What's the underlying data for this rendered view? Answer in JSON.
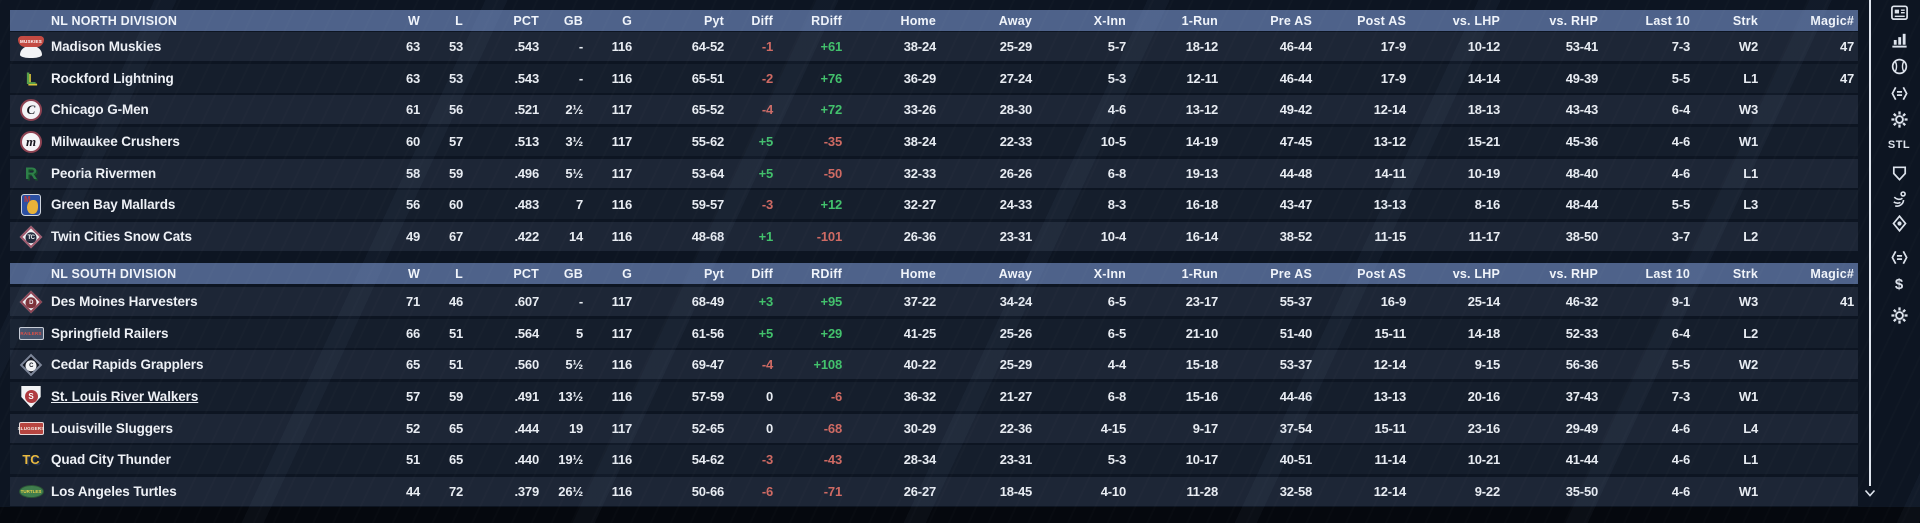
{
  "palette": {
    "background": "#0d1522",
    "header_bar": "#4e628a",
    "row_light": "#1d2636",
    "row_dark": "#151e2c",
    "text": "#e8ecf2",
    "positive": "#42c16c",
    "negative": "#cf6a63",
    "bottom_strip": "#05080e",
    "icon": "#dde3ec"
  },
  "columns": [
    "W",
    "L",
    "PCT",
    "GB",
    "G",
    "Pyt",
    "Diff",
    "RDiff",
    "Home",
    "Away",
    "X-Inn",
    "1-Run",
    "Pre AS",
    "Post AS",
    "vs. LHP",
    "vs. RHP",
    "Last 10",
    "Strk",
    "Magic#"
  ],
  "divisions": [
    {
      "label": "NL NORTH DIVISION",
      "teams": [
        {
          "name": "Madison Muskies",
          "underline": false,
          "logo": {
            "type": "banner",
            "c1": "#c34a42",
            "c2": "#f2f3f5",
            "label": "MUSKIES"
          },
          "stats": [
            "63",
            "53",
            ".543",
            "-",
            "116",
            "64-52",
            "-1",
            "+61",
            "38-24",
            "25-29",
            "5-7",
            "18-12",
            "46-44",
            "17-9",
            "10-12",
            "53-41",
            "7-3",
            "W2",
            "47"
          ]
        },
        {
          "name": "Rockford Lightning",
          "underline": false,
          "logo": {
            "type": "letter",
            "text": "L",
            "c1": "#58a04b",
            "c2": "#d9c43a"
          },
          "stats": [
            "63",
            "53",
            ".543",
            "-",
            "116",
            "65-51",
            "-2",
            "+76",
            "36-29",
            "27-24",
            "5-3",
            "12-11",
            "46-44",
            "17-9",
            "14-14",
            "49-39",
            "5-5",
            "L1",
            "47"
          ]
        },
        {
          "name": "Chicago G-Men",
          "underline": false,
          "logo": {
            "type": "circle",
            "text": "C",
            "ring": "#8e4352",
            "bg": "#f4f4f6",
            "fg": "#16161e"
          },
          "stats": [
            "61",
            "56",
            ".521",
            "2½",
            "117",
            "65-52",
            "-4",
            "+72",
            "33-26",
            "28-30",
            "4-6",
            "13-12",
            "49-42",
            "12-14",
            "18-13",
            "43-43",
            "6-4",
            "W3",
            ""
          ]
        },
        {
          "name": "Milwaukee Crushers",
          "underline": false,
          "logo": {
            "type": "circle",
            "text": "m",
            "ring": "#8e4352",
            "bg": "#f4f4f6",
            "fg": "#16161e"
          },
          "stats": [
            "60",
            "57",
            ".513",
            "3½",
            "117",
            "55-62",
            "+5",
            "-35",
            "38-24",
            "22-33",
            "10-5",
            "14-19",
            "47-45",
            "13-12",
            "15-21",
            "45-36",
            "4-6",
            "W1",
            ""
          ]
        },
        {
          "name": "Peoria Rivermen",
          "underline": false,
          "logo": {
            "type": "letter",
            "text": "R",
            "c1": "#2e8049",
            "c2": "#174a2a"
          },
          "stats": [
            "58",
            "59",
            ".496",
            "5½",
            "117",
            "53-64",
            "+5",
            "-50",
            "32-33",
            "26-26",
            "6-8",
            "19-13",
            "44-48",
            "14-11",
            "10-19",
            "48-40",
            "4-6",
            "L1",
            ""
          ]
        },
        {
          "name": "Green Bay Mallards",
          "underline": false,
          "logo": {
            "type": "shield",
            "bg": "#2b4fa2",
            "accent": "#e8b33a",
            "mark": "M",
            "markColor": "#c03a38"
          },
          "stats": [
            "56",
            "60",
            ".483",
            "7",
            "116",
            "59-57",
            "-3",
            "+12",
            "32-27",
            "24-33",
            "8-3",
            "16-18",
            "43-47",
            "13-13",
            "8-16",
            "48-44",
            "5-5",
            "L3",
            ""
          ]
        },
        {
          "name": "Twin Cities Snow Cats",
          "underline": false,
          "logo": {
            "type": "diamond",
            "bg": "#f2f3f5",
            "ring": "#a05a6e",
            "center": "#232c3e",
            "text": "TC",
            "fg": "#f2f3f5"
          },
          "stats": [
            "49",
            "67",
            ".422",
            "14",
            "116",
            "48-68",
            "+1",
            "-101",
            "26-36",
            "23-31",
            "10-4",
            "16-14",
            "38-52",
            "11-15",
            "11-17",
            "38-50",
            "3-7",
            "L2",
            ""
          ]
        }
      ]
    },
    {
      "label": "NL SOUTH DIVISION",
      "teams": [
        {
          "name": "Des Moines Harvesters",
          "underline": false,
          "logo": {
            "type": "diamond",
            "bg": "#f2f3f5",
            "ring": "#8e4352",
            "center": "#7e2f35",
            "text": "D",
            "fg": "#f2f3f5"
          },
          "stats": [
            "71",
            "46",
            ".607",
            "-",
            "117",
            "68-49",
            "+3",
            "+95",
            "37-22",
            "34-24",
            "6-5",
            "23-17",
            "55-37",
            "16-9",
            "25-14",
            "46-32",
            "9-1",
            "W3",
            "41"
          ]
        },
        {
          "name": "Springfield Railers",
          "underline": false,
          "logo": {
            "type": "rect",
            "bg": "#46536b",
            "ring": "#c8cdd6",
            "text": "RAILERS",
            "fg": "#e05048"
          },
          "stats": [
            "66",
            "51",
            ".564",
            "5",
            "117",
            "61-56",
            "+5",
            "+29",
            "41-25",
            "25-26",
            "6-5",
            "21-10",
            "51-40",
            "15-11",
            "14-18",
            "52-33",
            "6-4",
            "L2",
            ""
          ]
        },
        {
          "name": "Cedar Rapids Grapplers",
          "underline": false,
          "logo": {
            "type": "diamond",
            "bg": "#10141f",
            "ring": "#7d8699",
            "center": "#f2f3f5",
            "text": "C",
            "fg": "#10141f"
          },
          "stats": [
            "65",
            "51",
            ".560",
            "5½",
            "116",
            "69-47",
            "-4",
            "+108",
            "40-22",
            "25-29",
            "4-4",
            "15-18",
            "53-37",
            "12-14",
            "9-15",
            "56-36",
            "5-5",
            "W2",
            ""
          ]
        },
        {
          "name": "St. Louis River Walkers",
          "underline": true,
          "logo": {
            "type": "plate",
            "bg": "#f2f3f5",
            "ring": "#b0586a",
            "center": "#b03a3f",
            "text": "S",
            "fg": "#ffffff"
          },
          "stats": [
            "57",
            "59",
            ".491",
            "13½",
            "116",
            "57-59",
            "0",
            "-6",
            "36-32",
            "21-27",
            "6-8",
            "15-16",
            "44-46",
            "13-13",
            "20-16",
            "37-43",
            "7-3",
            "W1",
            ""
          ]
        },
        {
          "name": "Louisville Sluggers",
          "underline": false,
          "logo": {
            "type": "rect",
            "bg": "#b74540",
            "ring": "#e8d9d9",
            "text": "SLUGGERS",
            "fg": "#f5efe8"
          },
          "stats": [
            "52",
            "65",
            ".444",
            "19",
            "117",
            "52-65",
            "0",
            "-68",
            "30-29",
            "22-36",
            "4-15",
            "9-17",
            "37-54",
            "15-11",
            "23-16",
            "29-49",
            "4-6",
            "L4",
            ""
          ]
        },
        {
          "name": "Quad City Thunder",
          "underline": false,
          "logo": {
            "type": "letter",
            "text": "TC",
            "c1": "#e9b93f",
            "c2": "#23314f"
          },
          "stats": [
            "51",
            "65",
            ".440",
            "19½",
            "116",
            "54-62",
            "-3",
            "-43",
            "28-34",
            "23-31",
            "5-3",
            "10-17",
            "40-51",
            "11-14",
            "10-21",
            "41-44",
            "4-6",
            "L1",
            ""
          ]
        },
        {
          "name": "Los Angeles Turtles",
          "underline": false,
          "logo": {
            "type": "oval",
            "bg": "#3f7d4c",
            "ring": "#2a5435",
            "text": "TURTLES",
            "fg": "#e9d04a"
          },
          "stats": [
            "44",
            "72",
            ".379",
            "26½",
            "116",
            "50-66",
            "-6",
            "-71",
            "26-27",
            "18-45",
            "4-10",
            "11-28",
            "32-58",
            "12-14",
            "9-22",
            "35-50",
            "4-6",
            "W1",
            ""
          ]
        }
      ]
    }
  ],
  "sidebar": {
    "team_code": "STL",
    "icons": [
      {
        "kind": "news"
      },
      {
        "kind": "stats"
      },
      {
        "kind": "baseball"
      },
      {
        "kind": "compare"
      },
      {
        "kind": "settings"
      },
      {
        "kind": "ballpark"
      },
      {
        "kind": "celebration"
      },
      {
        "kind": "location"
      },
      {
        "kind": "compare"
      },
      {
        "kind": "finance"
      },
      {
        "kind": "settings"
      }
    ]
  },
  "scrollbar": {
    "direction": "down"
  }
}
